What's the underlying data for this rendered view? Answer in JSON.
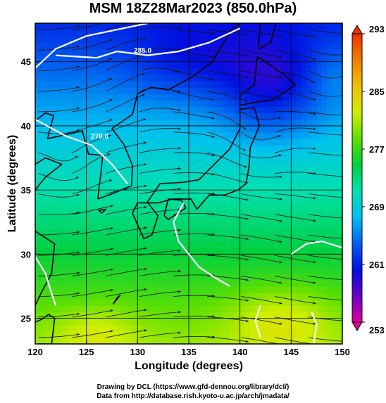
{
  "title": "MSM 18Z28Mar2023 (850.0hPa)",
  "xlabel": "Longitude (degrees)",
  "ylabel": "Latitude  (degrees)",
  "credits": [
    "Drawing by DCL (https://www.gfd-dennou.org/library/dcl/)",
    "Data from http://database.rish.kyoto-u.ac.jp/arch/jmadata/"
  ],
  "chart_data": {
    "type": "heatmap",
    "title": "MSM 18Z28Mar2023 (850.0hPa)",
    "xlabel": "Longitude (degrees)",
    "ylabel": "Latitude  (degrees)",
    "xlim": [
      120,
      150
    ],
    "ylim": [
      23,
      48
    ],
    "x_ticks": [
      120,
      125,
      130,
      135,
      140,
      145,
      150
    ],
    "y_ticks": [
      25,
      30,
      35,
      40,
      45
    ],
    "grid": true,
    "colorbar": {
      "min": 253,
      "max": 293,
      "ticks": [
        253,
        261,
        269,
        277,
        285,
        293
      ],
      "colors": [
        "#e0009a",
        "#6a00c8",
        "#0010e0",
        "#0060f0",
        "#00c0f0",
        "#00e0b0",
        "#00d040",
        "#60e000",
        "#d0ee00",
        "#f0c000",
        "#f08000",
        "#f03000"
      ]
    },
    "contour_labels": [
      "285.0",
      "270.0"
    ],
    "overlays": [
      "coastlines",
      "wind streamlines",
      "temperature contours"
    ]
  }
}
